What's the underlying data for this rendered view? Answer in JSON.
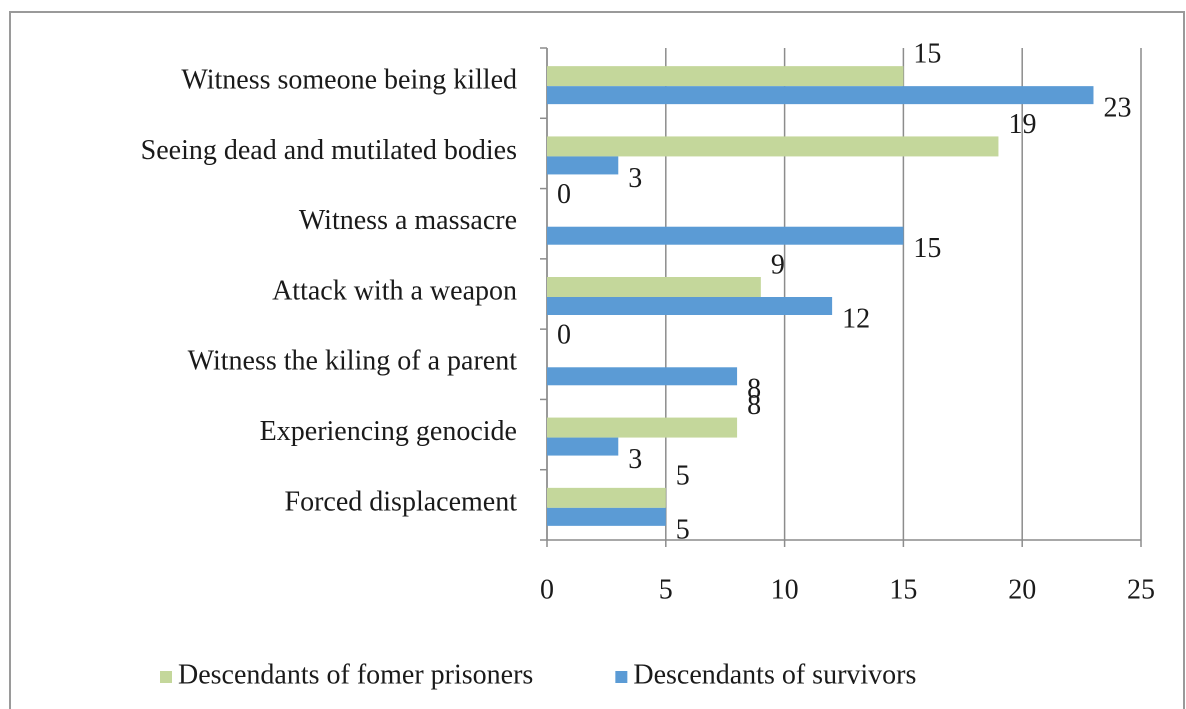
{
  "chart_data": {
    "type": "hbar",
    "categories": [
      "Witness someone being killed",
      "Seeing dead and mutilated bodies",
      "Witness a massacre",
      "Attack with a weapon",
      "Witness the kiling of a parent",
      "Experiencing genocide",
      "Forced displacement"
    ],
    "series": [
      {
        "name": "Descendants of fomer prisoners",
        "color": "#c4d79b",
        "values": [
          15,
          19,
          0,
          9,
          0,
          8,
          5
        ]
      },
      {
        "name": "Descendants of survivors",
        "color": "#5b9bd5",
        "values": [
          23,
          3,
          15,
          12,
          8,
          3,
          5
        ]
      }
    ],
    "xlim": [
      0,
      25
    ],
    "xticks": [
      0,
      5,
      10,
      15,
      20,
      25
    ],
    "grid": true,
    "legend": "bottom"
  }
}
